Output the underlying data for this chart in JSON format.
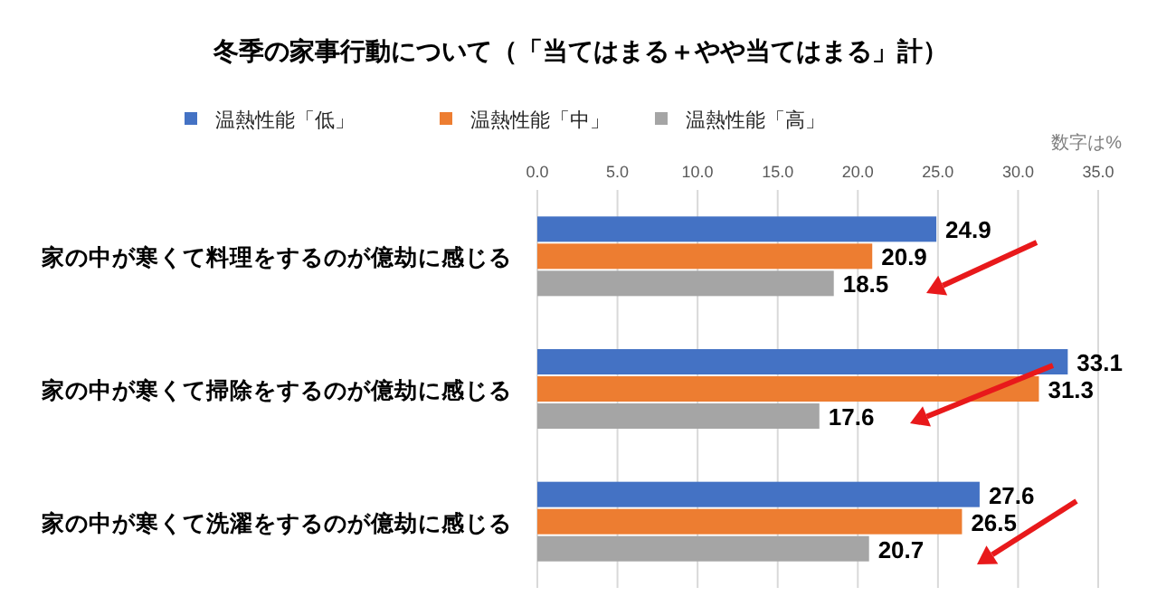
{
  "chart_data": {
    "type": "bar",
    "orientation": "horizontal",
    "title": "冬季の家事行動について（「当てはまる＋やや当てはまる」計）",
    "categories": [
      "家の中が寒くて料理をするのが億劫に感じる",
      "家の中が寒くて掃除をするのが億劫に感じる",
      "家の中が寒くて洗濯をするのが億劫に感じる"
    ],
    "series": [
      {
        "name": "温熱性能「低」",
        "color": "#4472c4",
        "values": [
          24.9,
          33.1,
          27.6
        ]
      },
      {
        "name": "温熱性能「中」",
        "color": "#ed7d31",
        "values": [
          20.9,
          31.3,
          26.5
        ]
      },
      {
        "name": "温熱性能「高」",
        "color": "#a5a5a5",
        "values": [
          18.5,
          17.6,
          20.7
        ]
      }
    ],
    "xlim": [
      0,
      35
    ],
    "xticks": [
      {
        "value": 0,
        "label": "0.0"
      },
      {
        "value": 5,
        "label": "5.0"
      },
      {
        "value": 10,
        "label": "10.0"
      },
      {
        "value": 15,
        "label": "15.0"
      },
      {
        "value": 20,
        "label": "20.0"
      },
      {
        "value": 25,
        "label": "25.0"
      },
      {
        "value": 30,
        "label": "30.0"
      },
      {
        "value": 35,
        "label": "35.0"
      }
    ],
    "grid": "x",
    "legend": "top left",
    "data_labels": true,
    "annotations": [
      "数字は%"
    ]
  }
}
